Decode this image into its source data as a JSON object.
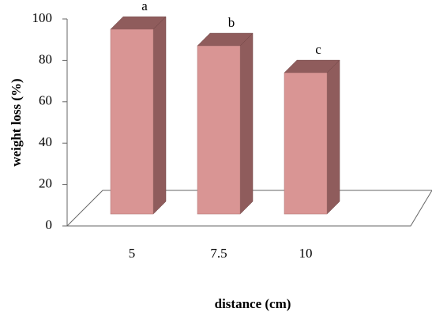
{
  "chart_data": {
    "type": "bar3d",
    "xlabel": "distance (cm)",
    "ylabel": "weight loss (%)",
    "categories": [
      "5",
      "7.5",
      "10"
    ],
    "values": [
      95,
      87,
      74
    ],
    "annotations": [
      "a",
      "b",
      "c"
    ],
    "color": "#d99594",
    "side_color": "#8f5c5c",
    "ylim": [
      0,
      100
    ],
    "yticks": [
      0,
      20,
      40,
      60,
      80,
      100
    ]
  }
}
